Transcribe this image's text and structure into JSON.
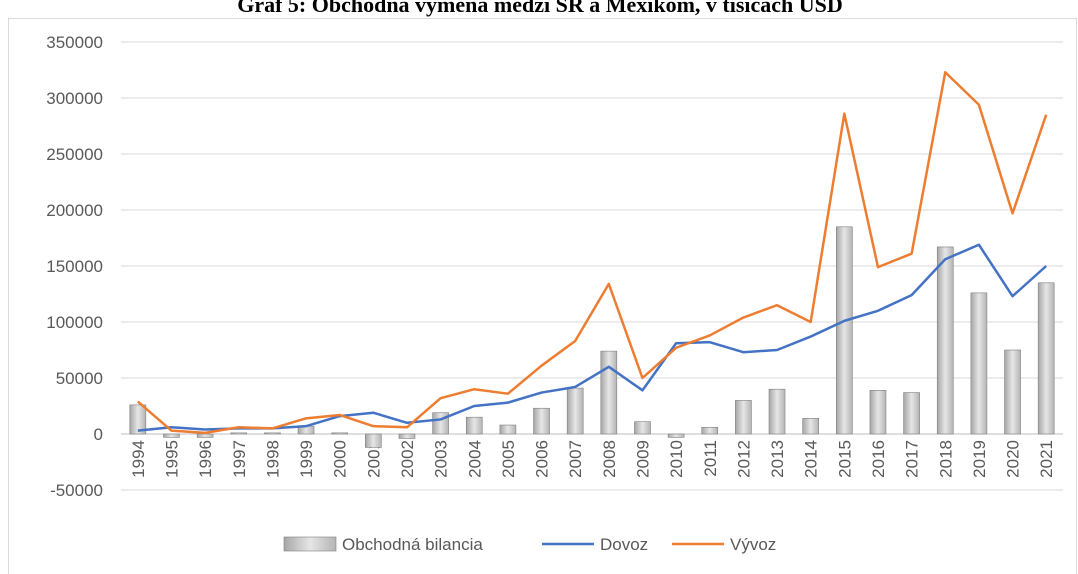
{
  "chart_data": {
    "type": "bar",
    "title": "Graf 5: Obchodná výmena medzi SR a Mexikom, v tisícách USD",
    "categories": [
      "1994",
      "1995",
      "1996",
      "1997",
      "1998",
      "1999",
      "2000",
      "2001",
      "2002",
      "2003",
      "2004",
      "2005",
      "2006",
      "2007",
      "2008",
      "2009",
      "2010",
      "2011",
      "2012",
      "2013",
      "2014",
      "2015",
      "2016",
      "2017",
      "2018",
      "2019",
      "2020",
      "2021"
    ],
    "series": [
      {
        "name": "Obchodná bilancia",
        "type": "bar",
        "color": "#c8c8c8",
        "values": [
          26000,
          -3000,
          -3000,
          1000,
          1000,
          7000,
          1000,
          -12000,
          -4000,
          19000,
          15000,
          8000,
          23000,
          41000,
          74000,
          11000,
          -3000,
          6000,
          30000,
          40000,
          14000,
          185000,
          39000,
          37000,
          167000,
          126000,
          75000,
          135000
        ]
      },
      {
        "name": "Dovoz",
        "type": "line",
        "color": "#4472c4",
        "values": [
          3000,
          6000,
          4000,
          5000,
          5000,
          7000,
          16000,
          19000,
          10000,
          13000,
          25000,
          28000,
          37000,
          42000,
          60000,
          39000,
          81000,
          82000,
          73000,
          75000,
          87000,
          101000,
          110000,
          124000,
          156000,
          169000,
          123000,
          150000
        ]
      },
      {
        "name": "Vývoz",
        "type": "line",
        "color": "#ed7d31",
        "values": [
          29000,
          3000,
          1000,
          6000,
          5000,
          14000,
          17000,
          7000,
          6000,
          32000,
          40000,
          36000,
          61000,
          83000,
          134000,
          50000,
          77000,
          88000,
          104000,
          115000,
          100000,
          286000,
          149000,
          161000,
          323000,
          294000,
          197000,
          285000
        ]
      }
    ],
    "ylim": [
      -50000,
      350000
    ],
    "yticks": [
      -50000,
      0,
      50000,
      100000,
      150000,
      200000,
      250000,
      300000,
      350000
    ],
    "grid": true,
    "legend": "bottom"
  }
}
